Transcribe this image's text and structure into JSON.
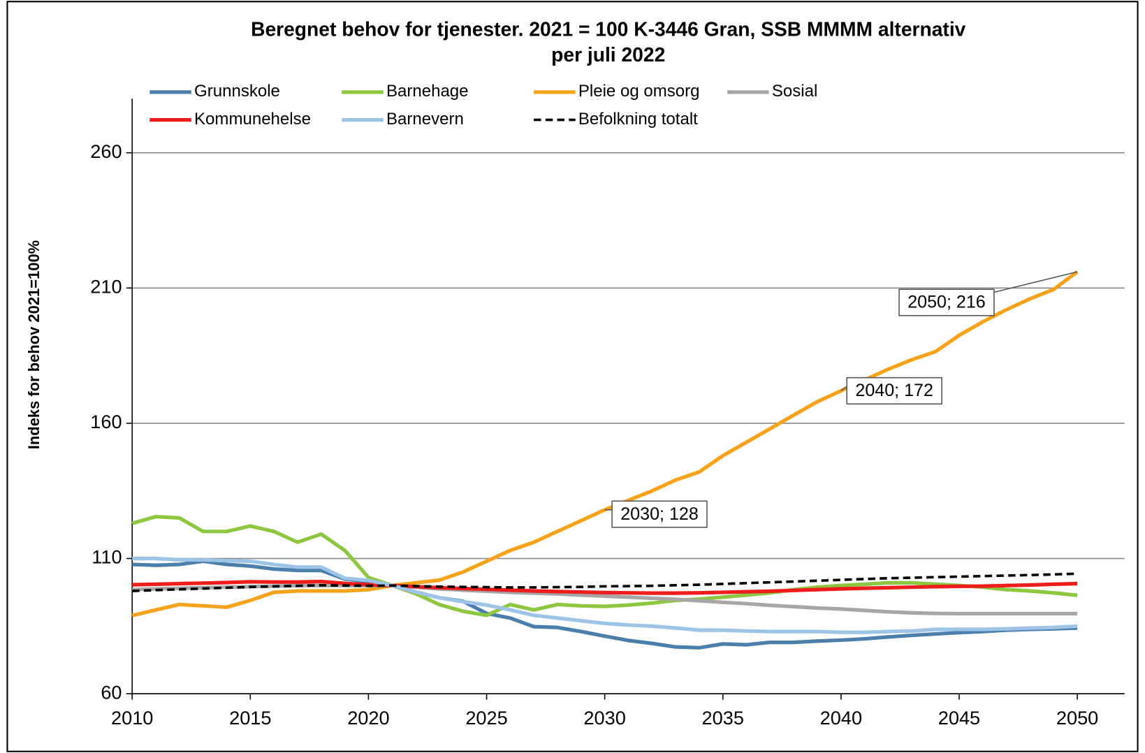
{
  "chart_data": {
    "type": "line",
    "title": [
      "Beregnet  behov for tjenester.  2021 = 100  K-3446 Gran, SSB MMMM alternativ",
      "per juli 2022"
    ],
    "y_label": "Indeks for behov 2021=100%",
    "x": [
      2010,
      2011,
      2012,
      2013,
      2014,
      2015,
      2016,
      2017,
      2018,
      2019,
      2020,
      2021,
      2022,
      2023,
      2024,
      2025,
      2026,
      2027,
      2028,
      2029,
      2030,
      2031,
      2032,
      2033,
      2034,
      2035,
      2036,
      2037,
      2038,
      2039,
      2040,
      2041,
      2042,
      2043,
      2044,
      2045,
      2046,
      2047,
      2048,
      2049,
      2050
    ],
    "xlim": [
      2010,
      2052
    ],
    "xticks": [
      2010,
      2015,
      2020,
      2025,
      2030,
      2035,
      2040,
      2045,
      2050
    ],
    "ylim": [
      60,
      280
    ],
    "yticks": [
      60,
      110,
      160,
      210,
      260
    ],
    "grid": true,
    "series": [
      {
        "name": "Grunnskole",
        "color": "#4a7eab",
        "values": [
          107.8,
          107.5,
          107.8,
          109,
          107.8,
          107.2,
          106.1,
          105.6,
          105.6,
          102.4,
          101.5,
          100,
          97.6,
          95.5,
          94.2,
          89.7,
          88,
          84.8,
          84.5,
          83,
          81.3,
          79.7,
          78.6,
          77.3,
          77,
          78.4,
          78.1,
          79,
          79,
          79.5,
          79.8,
          80.3,
          81,
          81.6,
          82.1,
          82.6,
          83,
          83.5,
          83.8,
          84,
          84.3
        ]
      },
      {
        "name": "Barnehage",
        "color": "#8dc63f",
        "values": [
          123,
          125.5,
          125,
          120,
          120,
          122,
          120,
          116,
          119,
          113,
          103,
          100,
          97,
          93,
          90.5,
          89,
          93,
          91,
          93,
          92.5,
          92.3,
          92.8,
          93.5,
          94.5,
          95,
          95.7,
          96.5,
          97.3,
          98.5,
          99.4,
          100,
          100.5,
          101,
          101,
          100.5,
          100,
          99.4,
          98.5,
          98,
          97.3,
          96.4
        ]
      },
      {
        "name": "Pleie og omsorg",
        "color": "#f7a21b",
        "values": [
          88.9,
          91,
          93,
          92.5,
          92,
          94.5,
          97.5,
          98,
          98,
          98,
          98.5,
          100,
          101,
          102,
          105,
          109,
          113,
          116,
          120,
          124,
          128,
          131.5,
          135,
          139,
          142,
          148,
          153,
          158,
          163,
          168,
          172,
          176,
          180,
          183.5,
          186.5,
          192.5,
          197.5,
          202,
          206,
          209.5,
          216
        ]
      },
      {
        "name": "Sosial",
        "color": "#a6a6a6",
        "values": [
          98.5,
          98.8,
          99,
          99.2,
          99.4,
          99.6,
          99.8,
          100,
          100,
          100,
          100,
          100,
          99.4,
          98.8,
          98.3,
          97.9,
          97.5,
          97.2,
          96.9,
          96.5,
          96.1,
          95.7,
          95.3,
          94.9,
          94.4,
          93.8,
          93.3,
          92.7,
          92.2,
          91.7,
          91.3,
          90.8,
          90.3,
          89.9,
          89.7,
          89.6,
          89.6,
          89.6,
          89.6,
          89.6,
          89.6
        ]
      },
      {
        "name": "Kommunehelse",
        "color": "#ee1c1c",
        "values": [
          100.3,
          100.5,
          100.7,
          100.9,
          101.1,
          101.4,
          101.3,
          101.3,
          101.5,
          100.8,
          100.3,
          100,
          99.6,
          99.2,
          98.9,
          98.6,
          98.3,
          98.0,
          97.8,
          97.6,
          97.4,
          97.3,
          97.2,
          97.2,
          97.3,
          97.5,
          97.7,
          97.9,
          98.2,
          98.5,
          98.8,
          99.0,
          99.2,
          99.4,
          99.6,
          99.7,
          99.8,
          100.0,
          100.2,
          100.5,
          100.7
        ]
      },
      {
        "name": "Barnevern",
        "color": "#9dc3e6",
        "values": [
          110,
          110,
          109.5,
          109.5,
          109.2,
          109,
          107.8,
          106.8,
          106.8,
          102.7,
          101.9,
          100,
          97.6,
          95.5,
          94,
          92.8,
          91,
          89,
          88,
          87,
          86,
          85.4,
          85,
          84.3,
          83.5,
          83.5,
          83.2,
          83,
          83,
          83,
          82.7,
          82.7,
          83,
          83.2,
          83.8,
          83.8,
          83.8,
          84,
          84.3,
          84.5,
          85
        ]
      },
      {
        "name": "Befolkning totalt",
        "color": "#000000",
        "dashed": true,
        "values": [
          98.0,
          98.3,
          98.6,
          98.9,
          99.2,
          99.5,
          99.7,
          99.9,
          100.1,
          100.0,
          99.9,
          100,
          99.8,
          99.6,
          99.5,
          99.4,
          99.3,
          99.3,
          99.4,
          99.5,
          99.7,
          99.8,
          99.9,
          100.1,
          100.3,
          100.6,
          100.9,
          101.2,
          101.5,
          101.8,
          102.1,
          102.4,
          102.7,
          102.9,
          103.1,
          103.3,
          103.5,
          103.7,
          103.9,
          104.1,
          104.4
        ]
      }
    ],
    "annotations": [
      {
        "label": "2030; 128",
        "x": 2030,
        "y": 128
      },
      {
        "label": "2040; 172",
        "x": 2040,
        "y": 172
      },
      {
        "label": "2050; 216",
        "x": 2050,
        "y": 216
      }
    ]
  }
}
